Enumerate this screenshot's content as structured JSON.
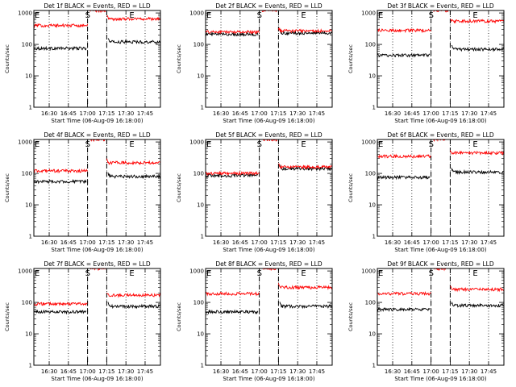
{
  "figure": {
    "background": "#ffffff",
    "axis_color": "#000000"
  },
  "chart_data": [
    {
      "type": "line",
      "title": "Det 1f BLACK = Events, RED = LLD",
      "xlabel": "Start Time (06-Aug-09 16:18:00)",
      "ylabel": "Counts/sec",
      "y_log": true,
      "ylim": [
        1,
        1200
      ],
      "xlim_minutes": [
        16.18,
        17.57
      ],
      "x_tick_labels": [
        "16:30",
        "16:45",
        "17:00",
        "17:15",
        "17:30",
        "17:45"
      ],
      "y_tick_labels": [
        "1",
        "10",
        "100",
        "1000"
      ],
      "markers": {
        "S": "17:00",
        "E": "17:15"
      },
      "series": [
        {
          "name": "Events",
          "color": "#000000",
          "segments": [
            {
              "start": "16:18",
              "end": "16:59",
              "level": 75
            },
            {
              "start": "17:16",
              "end": "17:57",
              "level": 120
            }
          ]
        },
        {
          "name": "LLD",
          "color": "#ff0000",
          "segments": [
            {
              "start": "16:18",
              "end": "17:00",
              "level": 400
            },
            {
              "start": "17:02",
              "end": "17:14",
              "level": 1200
            },
            {
              "start": "17:15",
              "end": "17:57",
              "level": 650
            }
          ]
        }
      ]
    },
    {
      "type": "line",
      "title": "Det 2f BLACK = Events, RED = LLD",
      "xlabel": "Start Time (06-Aug-09 16:18:00)",
      "ylabel": "Counts/sec",
      "y_log": true,
      "ylim": [
        1,
        1200
      ],
      "x_tick_labels": [
        "16:30",
        "16:45",
        "17:00",
        "17:15",
        "17:30",
        "17:45"
      ],
      "y_tick_labels": [
        "1",
        "10",
        "100",
        "1000"
      ],
      "markers": {
        "S": "17:00",
        "E": "17:15"
      },
      "series": [
        {
          "name": "Events",
          "color": "#000000",
          "segments": [
            {
              "start": "16:18",
              "end": "16:59",
              "level": 210
            },
            {
              "start": "17:16",
              "end": "17:57",
              "level": 230
            }
          ]
        },
        {
          "name": "LLD",
          "color": "#ff0000",
          "segments": [
            {
              "start": "16:18",
              "end": "17:00",
              "level": 250
            },
            {
              "start": "17:02",
              "end": "17:14",
              "level": 1200
            },
            {
              "start": "17:15",
              "end": "17:57",
              "level": 270
            }
          ]
        }
      ]
    },
    {
      "type": "line",
      "title": "Det 3f BLACK = Events, RED = LLD",
      "xlabel": "Start Time (06-Aug-09 16:18:00)",
      "ylabel": "Counts/sec",
      "y_log": true,
      "ylim": [
        1,
        1200
      ],
      "x_tick_labels": [
        "16:30",
        "16:45",
        "17:00",
        "17:15",
        "17:30",
        "17:45"
      ],
      "y_tick_labels": [
        "1",
        "10",
        "100",
        "1000"
      ],
      "markers": {
        "S": "17:00",
        "E": "17:15"
      },
      "series": [
        {
          "name": "Events",
          "color": "#000000",
          "segments": [
            {
              "start": "16:18",
              "end": "16:59",
              "level": 45
            },
            {
              "start": "17:16",
              "end": "17:57",
              "level": 70
            }
          ]
        },
        {
          "name": "LLD",
          "color": "#ff0000",
          "segments": [
            {
              "start": "16:18",
              "end": "17:00",
              "level": 280
            },
            {
              "start": "17:02",
              "end": "17:14",
              "level": 1200
            },
            {
              "start": "17:15",
              "end": "17:57",
              "level": 550
            }
          ]
        }
      ]
    },
    {
      "type": "line",
      "title": "Det 4f BLACK = Events, RED = LLD",
      "xlabel": "Start Time (06-Aug-09 16:18:00)",
      "ylabel": "Counts/sec",
      "y_log": true,
      "ylim": [
        1,
        1200
      ],
      "x_tick_labels": [
        "16:30",
        "16:45",
        "17:00",
        "17:15",
        "17:30",
        "17:45"
      ],
      "y_tick_labels": [
        "1",
        "10",
        "100",
        "1000"
      ],
      "markers": {
        "S": "17:00",
        "E": "17:15"
      },
      "series": [
        {
          "name": "Events",
          "color": "#000000",
          "segments": [
            {
              "start": "16:18",
              "end": "16:59",
              "level": 55
            },
            {
              "start": "17:16",
              "end": "17:57",
              "level": 80
            }
          ]
        },
        {
          "name": "LLD",
          "color": "#ff0000",
          "segments": [
            {
              "start": "16:18",
              "end": "17:00",
              "level": 120
            },
            {
              "start": "17:02",
              "end": "17:14",
              "level": 1200
            },
            {
              "start": "17:15",
              "end": "17:57",
              "level": 220
            }
          ]
        }
      ]
    },
    {
      "type": "line",
      "title": "Det 5f BLACK = Events, RED = LLD",
      "xlabel": "Start Time (06-Aug-09 16:18:00)",
      "ylabel": "Counts/sec",
      "y_log": true,
      "ylim": [
        1,
        1200
      ],
      "x_tick_labels": [
        "16:30",
        "16:45",
        "17:00",
        "17:15",
        "17:30",
        "17:45"
      ],
      "y_tick_labels": [
        "1",
        "10",
        "100",
        "1000"
      ],
      "markers": {
        "S": "17:00",
        "E": "17:15"
      },
      "series": [
        {
          "name": "Events",
          "color": "#000000",
          "segments": [
            {
              "start": "16:18",
              "end": "16:59",
              "level": 85
            },
            {
              "start": "17:16",
              "end": "17:57",
              "level": 140
            }
          ]
        },
        {
          "name": "LLD",
          "color": "#ff0000",
          "segments": [
            {
              "start": "16:18",
              "end": "17:00",
              "level": 100
            },
            {
              "start": "17:02",
              "end": "17:14",
              "level": 1200
            },
            {
              "start": "17:15",
              "end": "17:57",
              "level": 160
            }
          ]
        }
      ]
    },
    {
      "type": "line",
      "title": "Det 6f BLACK = Events, RED = LLD",
      "xlabel": "Start Time (06-Aug-09 16:18:00)",
      "ylabel": "Counts/sec",
      "y_log": true,
      "ylim": [
        1,
        1200
      ],
      "x_tick_labels": [
        "16:30",
        "16:45",
        "17:00",
        "17:15",
        "17:30",
        "17:45"
      ],
      "y_tick_labels": [
        "1",
        "10",
        "100",
        "1000"
      ],
      "markers": {
        "S": "17:00",
        "E": "17:15"
      },
      "series": [
        {
          "name": "Events",
          "color": "#000000",
          "segments": [
            {
              "start": "16:18",
              "end": "16:59",
              "level": 75
            },
            {
              "start": "17:16",
              "end": "17:57",
              "level": 110
            }
          ]
        },
        {
          "name": "LLD",
          "color": "#ff0000",
          "segments": [
            {
              "start": "16:18",
              "end": "17:00",
              "level": 350
            },
            {
              "start": "17:02",
              "end": "17:14",
              "level": 1200
            },
            {
              "start": "17:15",
              "end": "17:57",
              "level": 450
            }
          ]
        }
      ]
    },
    {
      "type": "line",
      "title": "Det 7f BLACK = Events, RED = LLD",
      "xlabel": "Start Time (06-Aug-09 16:18:00)",
      "ylabel": "Counts/sec",
      "y_log": true,
      "ylim": [
        1,
        1200
      ],
      "x_tick_labels": [
        "16:30",
        "16:45",
        "17:00",
        "17:15",
        "17:30",
        "17:45"
      ],
      "y_tick_labels": [
        "1",
        "10",
        "100",
        "1000"
      ],
      "markers": {
        "S": "17:00",
        "E": "17:15"
      },
      "series": [
        {
          "name": "Events",
          "color": "#000000",
          "segments": [
            {
              "start": "16:18",
              "end": "16:59",
              "level": 50
            },
            {
              "start": "17:16",
              "end": "17:57",
              "level": 75
            }
          ]
        },
        {
          "name": "LLD",
          "color": "#ff0000",
          "segments": [
            {
              "start": "16:18",
              "end": "17:00",
              "level": 90
            },
            {
              "start": "17:02",
              "end": "17:14",
              "level": 1200
            },
            {
              "start": "17:15",
              "end": "17:57",
              "level": 170
            }
          ]
        }
      ]
    },
    {
      "type": "line",
      "title": "Det 8f BLACK = Events, RED = LLD",
      "xlabel": "Start Time (06-Aug-09 16:18:00)",
      "ylabel": "Counts/sec",
      "y_log": true,
      "ylim": [
        1,
        1200
      ],
      "x_tick_labels": [
        "16:30",
        "16:45",
        "17:00",
        "17:15",
        "17:30",
        "17:45"
      ],
      "y_tick_labels": [
        "1",
        "10",
        "100",
        "1000"
      ],
      "markers": {
        "S": "17:00",
        "E": "17:15"
      },
      "series": [
        {
          "name": "Events",
          "color": "#000000",
          "segments": [
            {
              "start": "16:18",
              "end": "16:59",
              "level": 50
            },
            {
              "start": "17:16",
              "end": "17:57",
              "level": 75
            }
          ]
        },
        {
          "name": "LLD",
          "color": "#ff0000",
          "segments": [
            {
              "start": "16:18",
              "end": "17:00",
              "level": 190
            },
            {
              "start": "17:02",
              "end": "17:14",
              "level": 1200
            },
            {
              "start": "17:15",
              "end": "17:57",
              "level": 300
            }
          ]
        }
      ]
    },
    {
      "type": "line",
      "title": "Det 9f BLACK = Events, RED = LLD",
      "xlabel": "Start Time (06-Aug-09 16:18:00)",
      "ylabel": "Counts/sec",
      "y_log": true,
      "ylim": [
        1,
        1200
      ],
      "x_tick_labels": [
        "16:30",
        "16:45",
        "17:00",
        "17:15",
        "17:30",
        "17:45"
      ],
      "y_tick_labels": [
        "1",
        "10",
        "100",
        "1000"
      ],
      "markers": {
        "S": "17:00",
        "E": "17:15"
      },
      "series": [
        {
          "name": "Events",
          "color": "#000000",
          "segments": [
            {
              "start": "16:18",
              "end": "16:59",
              "level": 60
            },
            {
              "start": "17:16",
              "end": "17:57",
              "level": 80
            }
          ]
        },
        {
          "name": "LLD",
          "color": "#ff0000",
          "segments": [
            {
              "start": "16:18",
              "end": "17:00",
              "level": 190
            },
            {
              "start": "17:02",
              "end": "17:14",
              "level": 1200
            },
            {
              "start": "17:15",
              "end": "17:57",
              "level": 260
            }
          ]
        }
      ]
    }
  ]
}
